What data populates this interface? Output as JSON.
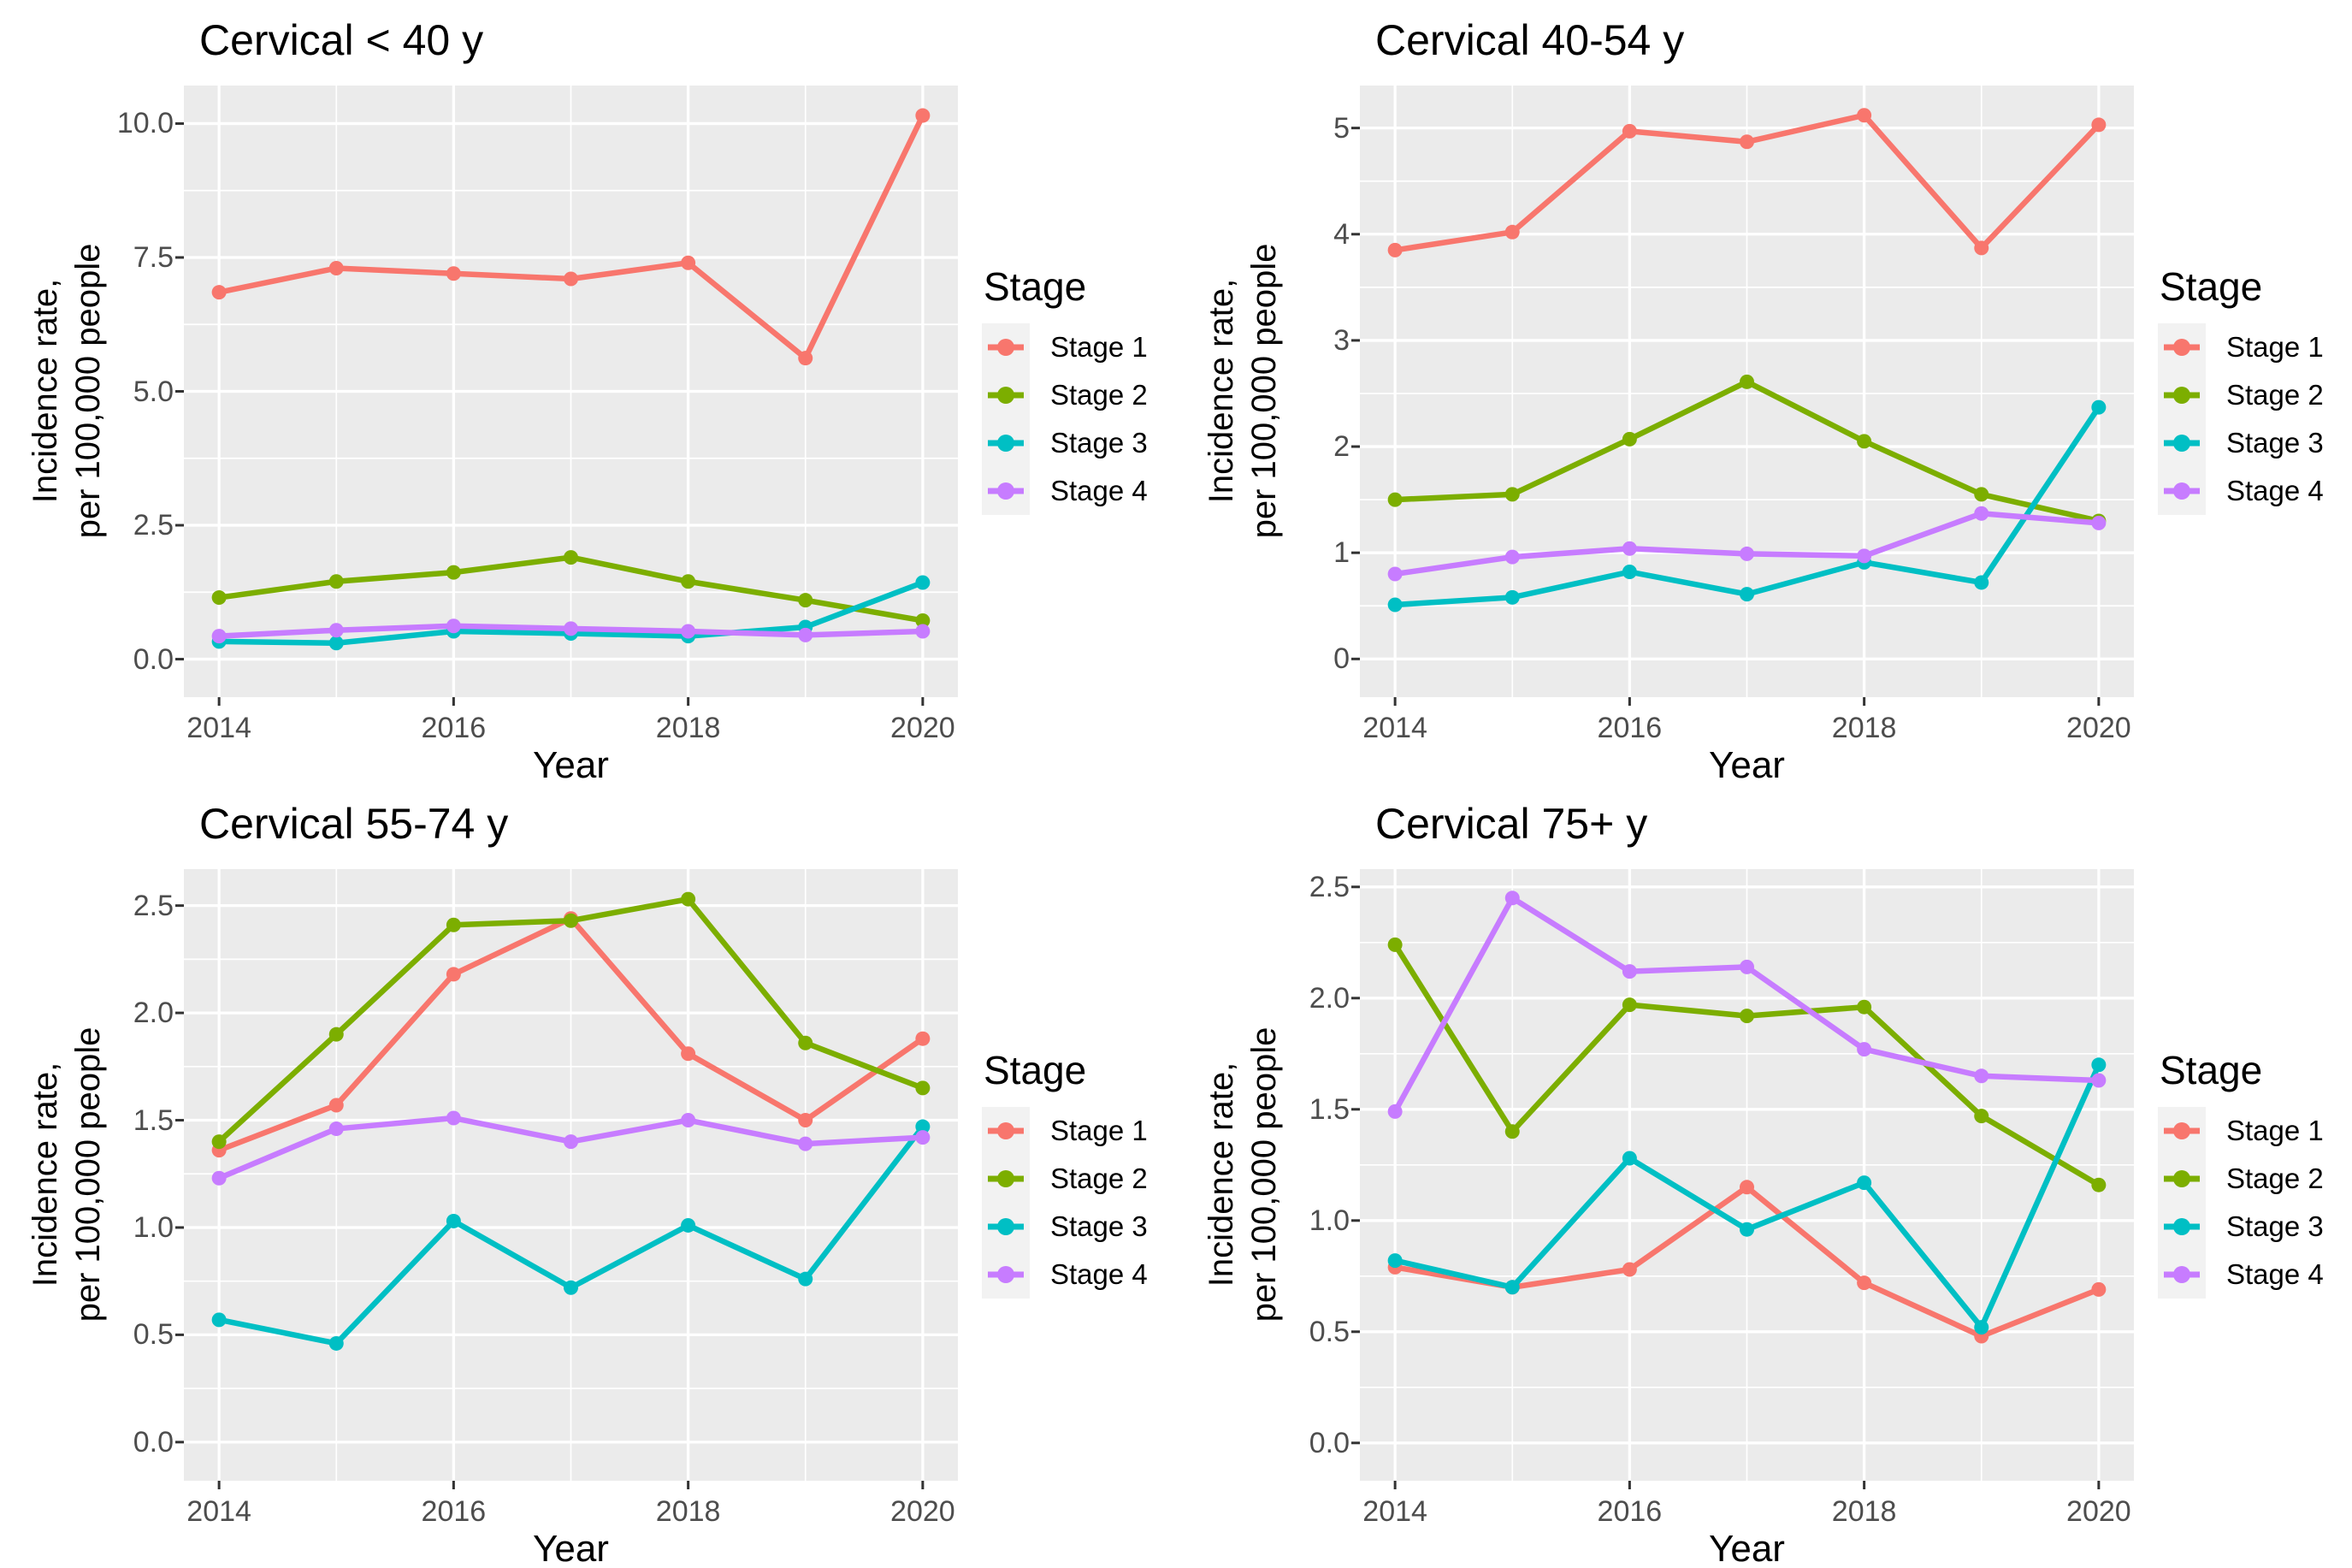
{
  "figure": {
    "kind": "faceted line charts, incidence rate by stage and age group",
    "legend_title": "Stage",
    "xlabel": "Year",
    "ylabel_lines": [
      "Incidence rate,",
      "per 100,000 people"
    ]
  },
  "colors": {
    "stage1": "#F8766D",
    "stage2": "#7CAE00",
    "stage3": "#00BFC4",
    "stage4": "#C77CFF",
    "panel_background": "#EBEBEB",
    "gridline": "#FFFFFF",
    "tick_mark": "#333333",
    "tick_label": "#4d4d4d",
    "legend_key_background": "#F2F2F2"
  },
  "chart_data": [
    {
      "type": "line",
      "title": "Cervical < 40 y",
      "xlabel": "Year",
      "ylabel_lines": [
        "Incidence rate,",
        "per 100,000 people"
      ],
      "legend_title": "Stage",
      "x": [
        2014,
        2015,
        2016,
        2017,
        2018,
        2019,
        2020
      ],
      "x_ticks": [
        2014,
        2016,
        2018,
        2020
      ],
      "x_tick_labels": [
        "2014",
        "2016",
        "2018",
        "2020"
      ],
      "x_minor": [
        2015,
        2017,
        2019
      ],
      "xlim": [
        2013.7,
        2020.3
      ],
      "y_ticks": [
        0,
        2.5,
        5,
        7.5,
        10
      ],
      "y_tick_labels": [
        "0.0",
        "2.5",
        "5.0",
        "7.5",
        "10.0"
      ],
      "y_minor": [
        1.25,
        3.75,
        6.25,
        8.75
      ],
      "ylim": [
        -0.71,
        10.71
      ],
      "grid": true,
      "legend_position": "right",
      "series": [
        {
          "name": "Stage 1",
          "color": "#F8766D",
          "values": [
            6.85,
            7.3,
            7.2,
            7.1,
            7.4,
            5.62,
            10.15
          ]
        },
        {
          "name": "Stage 2",
          "color": "#7CAE00",
          "values": [
            1.15,
            1.45,
            1.62,
            1.9,
            1.45,
            1.1,
            0.72
          ]
        },
        {
          "name": "Stage 3",
          "color": "#00BFC4",
          "values": [
            0.33,
            0.3,
            0.52,
            0.48,
            0.43,
            0.6,
            1.43
          ]
        },
        {
          "name": "Stage 4",
          "color": "#C77CFF",
          "values": [
            0.43,
            0.54,
            0.62,
            0.57,
            0.52,
            0.45,
            0.52
          ]
        }
      ]
    },
    {
      "type": "line",
      "title": "Cervical 40-54 y",
      "xlabel": "Year",
      "ylabel_lines": [
        "Incidence rate,",
        "per 100,000 people"
      ],
      "legend_title": "Stage",
      "x": [
        2014,
        2015,
        2016,
        2017,
        2018,
        2019,
        2020
      ],
      "x_ticks": [
        2014,
        2016,
        2018,
        2020
      ],
      "x_tick_labels": [
        "2014",
        "2016",
        "2018",
        "2020"
      ],
      "x_minor": [
        2015,
        2017,
        2019
      ],
      "xlim": [
        2013.7,
        2020.3
      ],
      "y_ticks": [
        0,
        1,
        2,
        3,
        4,
        5
      ],
      "y_tick_labels": [
        "0",
        "1",
        "2",
        "3",
        "4",
        "5"
      ],
      "y_minor": [
        0.5,
        1.5,
        2.5,
        3.5,
        4.5
      ],
      "ylim": [
        -0.36,
        5.4
      ],
      "grid": true,
      "legend_position": "right",
      "series": [
        {
          "name": "Stage 1",
          "color": "#F8766D",
          "values": [
            3.85,
            4.02,
            4.97,
            4.87,
            5.12,
            3.87,
            5.03
          ]
        },
        {
          "name": "Stage 2",
          "color": "#7CAE00",
          "values": [
            1.5,
            1.55,
            2.07,
            2.61,
            2.05,
            1.55,
            1.3
          ]
        },
        {
          "name": "Stage 3",
          "color": "#00BFC4",
          "values": [
            0.51,
            0.58,
            0.82,
            0.61,
            0.91,
            0.72,
            2.37
          ]
        },
        {
          "name": "Stage 4",
          "color": "#C77CFF",
          "values": [
            0.8,
            0.96,
            1.04,
            0.99,
            0.97,
            1.37,
            1.28
          ]
        }
      ]
    },
    {
      "type": "line",
      "title": "Cervical 55-74 y",
      "xlabel": "Year",
      "ylabel_lines": [
        "Incidence rate,",
        "per 100,000 people"
      ],
      "legend_title": "Stage",
      "x": [
        2014,
        2015,
        2016,
        2017,
        2018,
        2019,
        2020
      ],
      "x_ticks": [
        2014,
        2016,
        2018,
        2020
      ],
      "x_tick_labels": [
        "2014",
        "2016",
        "2018",
        "2020"
      ],
      "x_minor": [
        2015,
        2017,
        2019
      ],
      "xlim": [
        2013.7,
        2020.3
      ],
      "y_ticks": [
        0,
        0.5,
        1,
        1.5,
        2,
        2.5
      ],
      "y_tick_labels": [
        "0.0",
        "0.5",
        "1.0",
        "1.5",
        "2.0",
        "2.5"
      ],
      "y_minor": [
        0.25,
        0.75,
        1.25,
        1.75,
        2.25
      ],
      "ylim": [
        -0.18,
        2.67
      ],
      "grid": true,
      "legend_position": "right",
      "series": [
        {
          "name": "Stage 1",
          "color": "#F8766D",
          "values": [
            1.36,
            1.57,
            2.18,
            2.44,
            1.81,
            1.5,
            1.88
          ]
        },
        {
          "name": "Stage 2",
          "color": "#7CAE00",
          "values": [
            1.4,
            1.9,
            2.41,
            2.43,
            2.53,
            1.86,
            1.65
          ]
        },
        {
          "name": "Stage 3",
          "color": "#00BFC4",
          "values": [
            0.57,
            0.46,
            1.03,
            0.72,
            1.01,
            0.76,
            1.47
          ]
        },
        {
          "name": "Stage 4",
          "color": "#C77CFF",
          "values": [
            1.23,
            1.46,
            1.51,
            1.4,
            1.5,
            1.39,
            1.42
          ]
        }
      ]
    },
    {
      "type": "line",
      "title": "Cervical 75+ y",
      "xlabel": "Year",
      "ylabel_lines": [
        "Incidence rate,",
        "per 100,000 people"
      ],
      "legend_title": "Stage",
      "x": [
        2014,
        2015,
        2016,
        2017,
        2018,
        2019,
        2020
      ],
      "x_ticks": [
        2014,
        2016,
        2018,
        2020
      ],
      "x_tick_labels": [
        "2014",
        "2016",
        "2018",
        "2020"
      ],
      "x_minor": [
        2015,
        2017,
        2019
      ],
      "xlim": [
        2013.7,
        2020.3
      ],
      "y_ticks": [
        0,
        0.5,
        1,
        1.5,
        2,
        2.5
      ],
      "y_tick_labels": [
        "0.0",
        "0.5",
        "1.0",
        "1.5",
        "2.0",
        "2.5"
      ],
      "y_minor": [
        0.25,
        0.75,
        1.25,
        1.75,
        2.25
      ],
      "ylim": [
        -0.17,
        2.58
      ],
      "grid": true,
      "legend_position": "right",
      "series": [
        {
          "name": "Stage 1",
          "color": "#F8766D",
          "values": [
            0.79,
            0.7,
            0.78,
            1.15,
            0.72,
            0.48,
            0.69
          ]
        },
        {
          "name": "Stage 2",
          "color": "#7CAE00",
          "values": [
            2.24,
            1.4,
            1.97,
            1.92,
            1.96,
            1.47,
            1.16
          ]
        },
        {
          "name": "Stage 3",
          "color": "#00BFC4",
          "values": [
            0.82,
            0.7,
            1.28,
            0.96,
            1.17,
            0.52,
            1.7
          ]
        },
        {
          "name": "Stage 4",
          "color": "#C77CFF",
          "values": [
            1.49,
            2.45,
            2.12,
            2.14,
            1.77,
            1.65,
            1.63
          ]
        }
      ]
    }
  ]
}
